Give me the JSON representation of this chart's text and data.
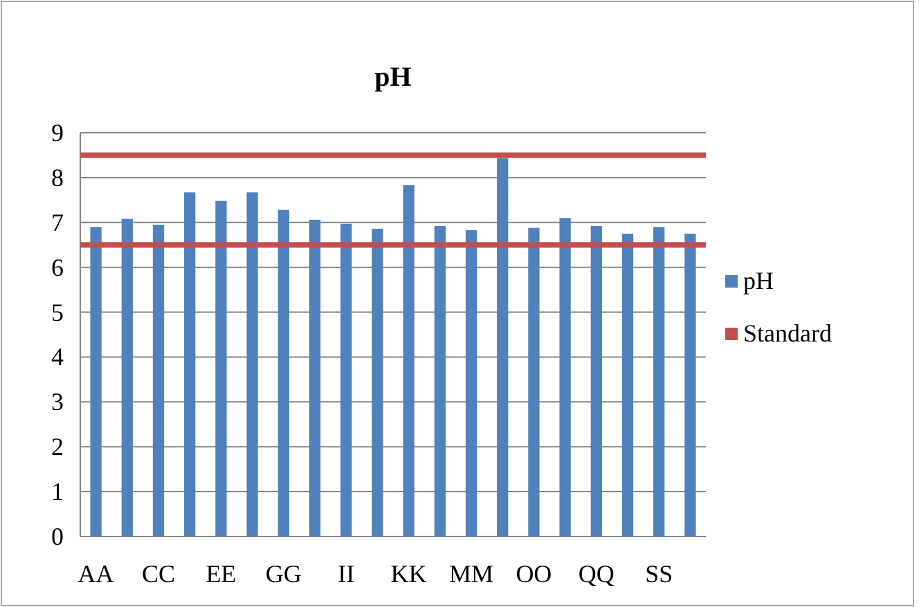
{
  "chart_data": {
    "type": "bar",
    "title": "pH",
    "categories": [
      "AA",
      null,
      "CC",
      null,
      "EE",
      null,
      "GG",
      null,
      "II",
      null,
      "KK",
      null,
      "MM",
      null,
      "OO",
      null,
      "QQ",
      null,
      "SS",
      null
    ],
    "series": [
      {
        "name": "pH",
        "color": "#4f81bd",
        "values": [
          6.9,
          7.08,
          6.95,
          7.67,
          7.48,
          7.67,
          7.28,
          7.06,
          6.97,
          6.86,
          7.83,
          6.92,
          6.83,
          8.43,
          6.88,
          7.1,
          6.92,
          6.75,
          6.9,
          6.75
        ]
      }
    ],
    "ref_lines": [
      {
        "axis": "y",
        "value": 8.5,
        "label": "Standard",
        "color": "#c0504d"
      },
      {
        "axis": "y",
        "value": 6.5,
        "color": "#c0504d"
      }
    ],
    "ylim": [
      0,
      9
    ],
    "yticks": [
      0,
      1,
      2,
      3,
      4,
      5,
      6,
      7,
      8,
      9
    ],
    "grid": "y",
    "legend": "right"
  }
}
